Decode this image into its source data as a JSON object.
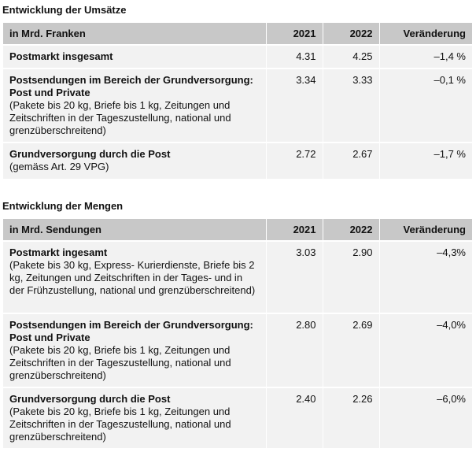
{
  "umsaetze": {
    "title": "Entwicklung der Umsätze",
    "headers": [
      "in Mrd. Franken",
      "2021",
      "2022",
      "Veränderung"
    ],
    "rows": [
      {
        "label": "Postmarkt insgesamt",
        "note": "",
        "v2021": "4.31",
        "v2022": "4.25",
        "change": "–1,4 %"
      },
      {
        "label": "Postsendungen im Bereich der Grundversorgung: Post und Private",
        "note": "(Pakete bis 20 kg, Briefe bis 1 kg, Zeitungen und Zeitschriften in der Tageszustellung, national und grenzüberschreitend)",
        "v2021": "3.34",
        "v2022": "3.33",
        "change": "–0,1 %"
      },
      {
        "label": "Grundversorgung durch die Post",
        "note": "(gemäss Art. 29 VPG)",
        "v2021": "2.72",
        "v2022": "2.67",
        "change": "–1,7 %"
      }
    ]
  },
  "mengen": {
    "title": "Entwicklung der Mengen",
    "headers": [
      "in Mrd. Sendungen",
      "2021",
      "2022",
      "Veränderung"
    ],
    "rows": [
      {
        "label": "Postmarkt ingesamt",
        "note": "(Pakete bis 30 kg, Express- Kurierdienste, Briefe bis 2 kg, Zeitungen und Zeitschriften in der Tages- und in der Frühzustellung, national und grenzüberschreitend)",
        "v2021": "3.03",
        "v2022": "2.90",
        "change": "–4,3%"
      },
      {
        "label": "Postsendungen im Bereich der Grundversorgung: Post und Private",
        "note": "(Pakete bis 20 kg, Briefe bis 1 kg, Zeitungen und Zeitschriften in der Tageszustellung, national und grenzüberschreitend)",
        "v2021": "2.80",
        "v2022": "2.69",
        "change": "–4,0%"
      },
      {
        "label": "Grundversorgung durch die Post",
        "note": "(Pakete bis 20 kg, Briefe bis 1 kg, Zeitungen und Zeitschriften in der Tageszustellung, national und grenzüberschreitend)",
        "v2021": "2.40",
        "v2022": "2.26",
        "change": "–6,0%"
      }
    ]
  }
}
